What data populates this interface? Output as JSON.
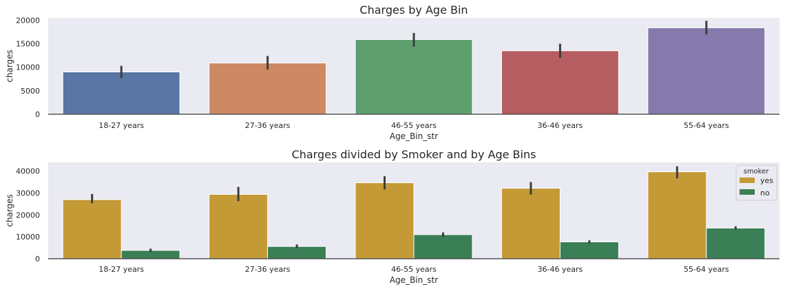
{
  "chart_data": [
    {
      "type": "bar",
      "title": "Charges by Age Bin",
      "xlabel": "Age_Bin_str",
      "ylabel": "charges",
      "categories": [
        "18-27 years",
        "27-36 years",
        "46-55 years",
        "36-46 years",
        "55-64 years"
      ],
      "values": [
        9000,
        10900,
        15900,
        13500,
        18400
      ],
      "error_bars": [
        [
          7700,
          10300
        ],
        [
          9500,
          12400
        ],
        [
          14400,
          17300
        ],
        [
          12000,
          15000
        ],
        [
          17000,
          19900
        ]
      ],
      "colors": [
        "#5875a4",
        "#cc8963",
        "#5f9e6e",
        "#b55d60",
        "#857aab"
      ],
      "ylim": [
        0,
        20500
      ],
      "yticks": [
        0,
        5000,
        10000,
        15000,
        20000
      ],
      "grid": false,
      "background": "#eaeaf2"
    },
    {
      "type": "bar",
      "title": "Charges divided by Smoker and by Age Bins",
      "xlabel": "Age_Bin_str",
      "ylabel": "charges",
      "categories": [
        "18-27 years",
        "27-36 years",
        "46-55 years",
        "36-46 years",
        "55-64 years"
      ],
      "series": [
        {
          "name": "yes",
          "color": "#c49a36",
          "values": [
            27000,
            29400,
            34700,
            32200,
            39700
          ],
          "error_bars": [
            [
              25300,
              29600
            ],
            [
              26300,
              32800
            ],
            [
              31600,
              37700
            ],
            [
              29300,
              35000
            ],
            [
              36700,
              42200
            ]
          ]
        },
        {
          "name": "no",
          "color": "#3a7f55",
          "values": [
            3800,
            5600,
            11000,
            7700,
            14000
          ],
          "error_bars": [
            [
              3000,
              4600
            ],
            [
              4900,
              6500
            ],
            [
              10000,
              12000
            ],
            [
              7000,
              8400
            ],
            [
              13300,
              14800
            ]
          ]
        }
      ],
      "legend_title": "smoker",
      "legend_position": "top-right",
      "ylim": [
        0,
        44000
      ],
      "yticks": [
        0,
        10000,
        20000,
        30000,
        40000
      ],
      "grid": false,
      "background": "#eaeaf2"
    }
  ]
}
